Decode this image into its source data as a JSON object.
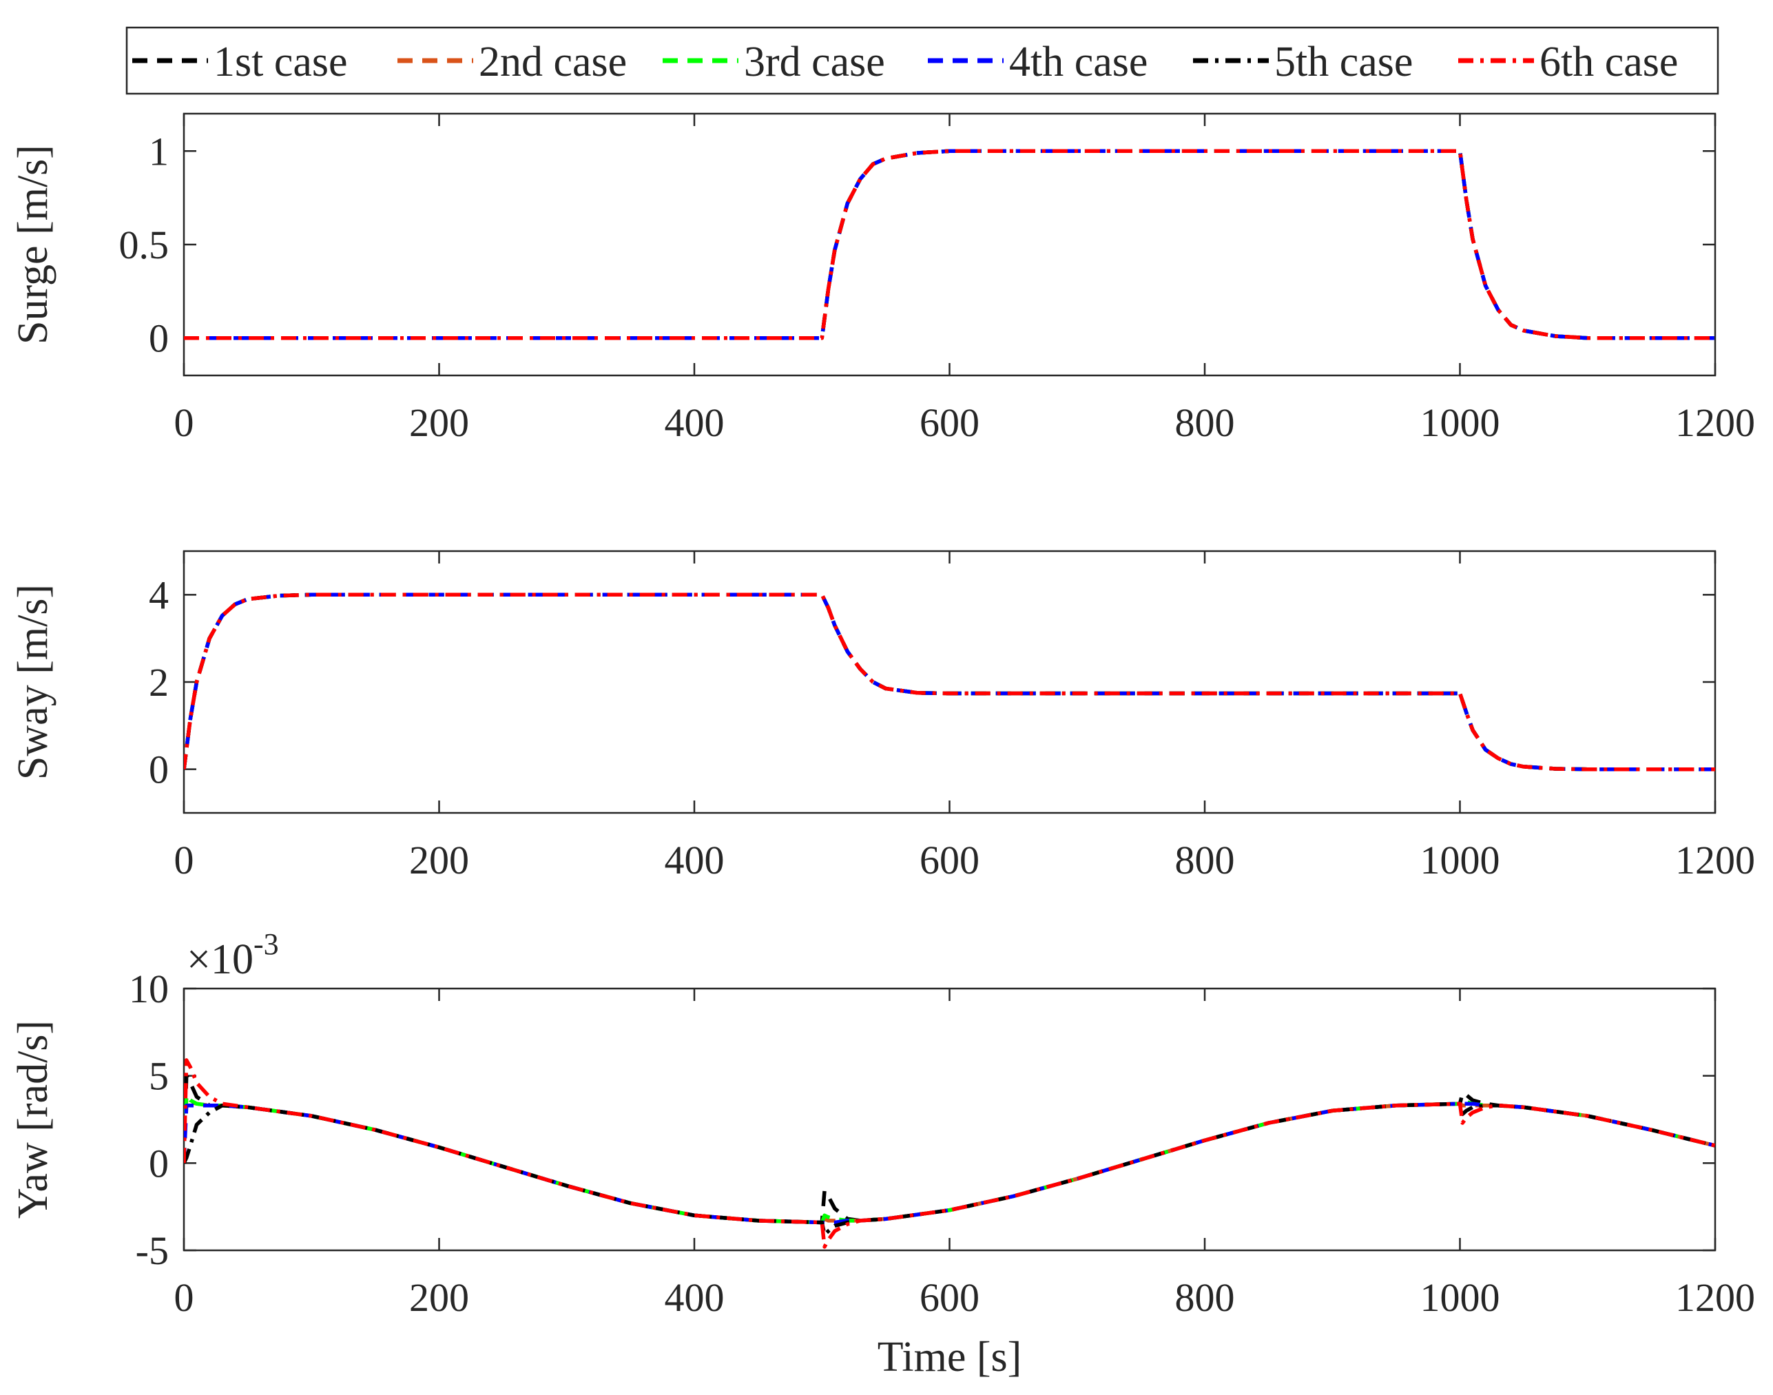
{
  "legend": {
    "entries": [
      {
        "label": "1st case",
        "color": "#000000",
        "dash": "dash"
      },
      {
        "label": "2nd case",
        "color": "#D95319",
        "dash": "dash"
      },
      {
        "label": "3rd case",
        "color": "#00FF00",
        "dash": "dash"
      },
      {
        "label": "4th case",
        "color": "#0000FF",
        "dash": "dash"
      },
      {
        "label": "5th case",
        "color": "#000000",
        "dash": "dashdot"
      },
      {
        "label": "6th case",
        "color": "#FF0000",
        "dash": "dashdot"
      }
    ]
  },
  "chart_data": [
    {
      "type": "line",
      "ylabel": "Surge [m/s]",
      "xlabel": "",
      "xlim": [
        0,
        1200
      ],
      "ylim": [
        -0.2,
        1.2
      ],
      "xticks": [
        "0",
        "200",
        "400",
        "600",
        "800",
        "1000",
        "1200"
      ],
      "yticks": [
        "0",
        "0.5",
        "1"
      ],
      "ytick_values": [
        0,
        0.5,
        1
      ],
      "exponent": "",
      "grid": false,
      "x": [
        0,
        100,
        200,
        300,
        400,
        500,
        505,
        510,
        520,
        530,
        540,
        550,
        575,
        600,
        700,
        800,
        900,
        1000,
        1005,
        1010,
        1020,
        1030,
        1040,
        1050,
        1075,
        1100,
        1200
      ],
      "series": [
        {
          "name": "1st case",
          "values": [
            0,
            0,
            0,
            0,
            0,
            0,
            0.26,
            0.47,
            0.72,
            0.85,
            0.93,
            0.96,
            0.99,
            1.0,
            1.0,
            1.0,
            1.0,
            1.0,
            0.74,
            0.53,
            0.28,
            0.15,
            0.07,
            0.04,
            0.01,
            0,
            0
          ]
        },
        {
          "name": "2nd case",
          "values": [
            0,
            0,
            0,
            0,
            0,
            0,
            0.26,
            0.47,
            0.72,
            0.85,
            0.93,
            0.96,
            0.99,
            1.0,
            1.0,
            1.0,
            1.0,
            1.0,
            0.74,
            0.53,
            0.28,
            0.15,
            0.07,
            0.04,
            0.01,
            0,
            0
          ]
        },
        {
          "name": "3rd case",
          "values": [
            0,
            0,
            0,
            0,
            0,
            0,
            0.26,
            0.47,
            0.72,
            0.85,
            0.93,
            0.96,
            0.99,
            1.0,
            1.0,
            1.0,
            1.0,
            1.0,
            0.74,
            0.53,
            0.28,
            0.15,
            0.07,
            0.04,
            0.01,
            0,
            0
          ]
        },
        {
          "name": "4th case",
          "values": [
            0,
            0,
            0,
            0,
            0,
            0,
            0.26,
            0.47,
            0.72,
            0.85,
            0.93,
            0.96,
            0.99,
            1.0,
            1.0,
            1.0,
            1.0,
            1.0,
            0.74,
            0.53,
            0.28,
            0.15,
            0.07,
            0.04,
            0.01,
            0,
            0
          ]
        },
        {
          "name": "5th case",
          "values": [
            0,
            0,
            0,
            0,
            0,
            0,
            0.26,
            0.47,
            0.72,
            0.85,
            0.93,
            0.96,
            0.99,
            1.0,
            1.0,
            1.0,
            1.0,
            1.0,
            0.74,
            0.53,
            0.28,
            0.15,
            0.07,
            0.04,
            0.01,
            0,
            0
          ]
        },
        {
          "name": "6th case",
          "values": [
            0,
            0,
            0,
            0,
            0,
            0,
            0.26,
            0.47,
            0.72,
            0.85,
            0.93,
            0.96,
            0.99,
            1.0,
            1.0,
            1.0,
            1.0,
            1.0,
            0.74,
            0.53,
            0.28,
            0.15,
            0.07,
            0.04,
            0.01,
            0,
            0
          ]
        }
      ]
    },
    {
      "type": "line",
      "ylabel": "Sway [m/s]",
      "xlabel": "",
      "xlim": [
        0,
        1200
      ],
      "ylim": [
        -1,
        5
      ],
      "xticks": [
        "0",
        "200",
        "400",
        "600",
        "800",
        "1000",
        "1200"
      ],
      "yticks": [
        "0",
        "2",
        "4"
      ],
      "ytick_values": [
        0,
        2,
        4
      ],
      "exponent": "",
      "grid": false,
      "x": [
        0,
        5,
        10,
        20,
        30,
        40,
        50,
        75,
        100,
        300,
        500,
        505,
        510,
        520,
        530,
        540,
        550,
        575,
        600,
        800,
        1000,
        1005,
        1010,
        1020,
        1030,
        1040,
        1050,
        1075,
        1100,
        1200
      ],
      "series": [
        {
          "name": "1st case",
          "values": [
            0,
            1.15,
            2.0,
            3.0,
            3.52,
            3.78,
            3.9,
            3.98,
            4.0,
            4.0,
            4.0,
            3.7,
            3.3,
            2.7,
            2.3,
            2.0,
            1.85,
            1.75,
            1.74,
            1.74,
            1.74,
            1.3,
            0.9,
            0.45,
            0.25,
            0.12,
            0.06,
            0.01,
            0,
            0
          ]
        },
        {
          "name": "2nd case",
          "values": [
            0,
            1.15,
            2.0,
            3.0,
            3.52,
            3.78,
            3.9,
            3.98,
            4.0,
            4.0,
            4.0,
            3.7,
            3.3,
            2.7,
            2.3,
            2.0,
            1.85,
            1.75,
            1.74,
            1.74,
            1.74,
            1.3,
            0.9,
            0.45,
            0.25,
            0.12,
            0.06,
            0.01,
            0,
            0
          ]
        },
        {
          "name": "3rd case",
          "values": [
            0,
            1.15,
            2.0,
            3.0,
            3.52,
            3.78,
            3.9,
            3.98,
            4.0,
            4.0,
            4.0,
            3.7,
            3.3,
            2.7,
            2.3,
            2.0,
            1.85,
            1.75,
            1.74,
            1.74,
            1.74,
            1.3,
            0.9,
            0.45,
            0.25,
            0.12,
            0.06,
            0.01,
            0,
            0
          ]
        },
        {
          "name": "4th case",
          "values": [
            0,
            1.15,
            2.0,
            3.0,
            3.52,
            3.78,
            3.9,
            3.98,
            4.0,
            4.0,
            4.0,
            3.7,
            3.3,
            2.7,
            2.3,
            2.0,
            1.85,
            1.75,
            1.74,
            1.74,
            1.74,
            1.3,
            0.9,
            0.45,
            0.25,
            0.12,
            0.06,
            0.01,
            0,
            0
          ]
        },
        {
          "name": "5th case",
          "values": [
            0,
            1.15,
            2.0,
            3.0,
            3.52,
            3.78,
            3.9,
            3.98,
            4.0,
            4.0,
            4.0,
            3.7,
            3.3,
            2.7,
            2.3,
            2.0,
            1.85,
            1.75,
            1.74,
            1.74,
            1.74,
            1.3,
            0.9,
            0.45,
            0.25,
            0.12,
            0.06,
            0.01,
            0,
            0
          ]
        },
        {
          "name": "6th case",
          "values": [
            0,
            1.15,
            2.0,
            3.0,
            3.52,
            3.78,
            3.9,
            3.98,
            4.0,
            4.0,
            4.0,
            3.7,
            3.3,
            2.7,
            2.3,
            2.0,
            1.85,
            1.75,
            1.74,
            1.74,
            1.74,
            1.3,
            0.9,
            0.45,
            0.25,
            0.12,
            0.06,
            0.01,
            0,
            0
          ]
        }
      ]
    },
    {
      "type": "line",
      "ylabel": "Yaw [rad/s]",
      "xlabel": "Time [s]",
      "xlim": [
        0,
        1200
      ],
      "ylim": [
        -5,
        10
      ],
      "xticks": [
        "0",
        "200",
        "400",
        "600",
        "800",
        "1000",
        "1200"
      ],
      "yticks": [
        "-5",
        "0",
        "5",
        "10"
      ],
      "ytick_values": [
        -5,
        0,
        5,
        10
      ],
      "exponent": "×10-3",
      "grid": false,
      "x": [
        0,
        2,
        5,
        10,
        20,
        30,
        50,
        100,
        150,
        200,
        250,
        300,
        350,
        400,
        450,
        500,
        502,
        505,
        510,
        520,
        530,
        550,
        600,
        650,
        700,
        750,
        800,
        850,
        900,
        950,
        1000,
        1002,
        1005,
        1010,
        1020,
        1030,
        1050,
        1100,
        1150,
        1200
      ],
      "series": [
        {
          "name": "1st case",
          "values": [
            0,
            5.0,
            4.6,
            3.8,
            3.3,
            3.3,
            3.2,
            2.7,
            1.9,
            0.9,
            -0.2,
            -1.3,
            -2.3,
            -3.0,
            -3.3,
            -3.4,
            -1.6,
            -1.9,
            -2.6,
            -3.2,
            -3.3,
            -3.2,
            -2.7,
            -1.9,
            -0.9,
            0.2,
            1.3,
            2.3,
            3.0,
            3.3,
            3.4,
            4.0,
            3.9,
            3.6,
            3.4,
            3.3,
            3.2,
            2.7,
            1.9,
            1.0
          ]
        },
        {
          "name": "2nd case",
          "values": [
            0,
            3.8,
            3.5,
            3.4,
            3.3,
            3.3,
            3.2,
            2.7,
            1.9,
            0.9,
            -0.2,
            -1.3,
            -2.3,
            -3.0,
            -3.3,
            -3.4,
            -3.2,
            -3.3,
            -3.3,
            -3.3,
            -3.3,
            -3.2,
            -2.7,
            -1.9,
            -0.9,
            0.2,
            1.3,
            2.3,
            3.0,
            3.3,
            3.4,
            3.3,
            3.3,
            3.3,
            3.3,
            3.3,
            3.2,
            2.7,
            1.9,
            1.0
          ]
        },
        {
          "name": "3rd case",
          "values": [
            0,
            3.9,
            3.6,
            3.4,
            3.3,
            3.3,
            3.2,
            2.7,
            1.9,
            0.9,
            -0.2,
            -1.3,
            -2.3,
            -3.0,
            -3.3,
            -3.4,
            -3.0,
            -3.1,
            -3.2,
            -3.3,
            -3.3,
            -3.2,
            -2.7,
            -1.9,
            -0.9,
            0.2,
            1.3,
            2.3,
            3.0,
            3.3,
            3.4,
            3.6,
            3.5,
            3.4,
            3.3,
            3.3,
            3.2,
            2.7,
            1.9,
            1.0
          ]
        },
        {
          "name": "4th case",
          "values": [
            0,
            3.3,
            3.3,
            3.3,
            3.3,
            3.3,
            3.2,
            2.7,
            1.9,
            0.9,
            -0.2,
            -1.3,
            -2.3,
            -3.0,
            -3.3,
            -3.4,
            -3.4,
            -3.4,
            -3.4,
            -3.3,
            -3.3,
            -3.2,
            -2.7,
            -1.9,
            -0.9,
            0.2,
            1.3,
            2.3,
            3.0,
            3.3,
            3.4,
            3.4,
            3.4,
            3.4,
            3.3,
            3.3,
            3.2,
            2.7,
            1.9,
            1.0
          ]
        },
        {
          "name": "5th case",
          "values": [
            0,
            0.3,
            1.0,
            2.2,
            2.9,
            3.3,
            3.2,
            2.7,
            1.9,
            0.9,
            -0.2,
            -1.3,
            -2.3,
            -3.0,
            -3.3,
            -3.4,
            -4.1,
            -3.9,
            -3.6,
            -3.4,
            -3.3,
            -3.2,
            -2.7,
            -1.9,
            -0.9,
            0.2,
            1.3,
            2.3,
            3.0,
            3.3,
            3.4,
            2.8,
            3.0,
            3.2,
            3.3,
            3.3,
            3.2,
            2.7,
            1.9,
            1.0
          ]
        },
        {
          "name": "6th case",
          "values": [
            0,
            5.9,
            5.5,
            4.6,
            3.8,
            3.4,
            3.2,
            2.7,
            1.9,
            0.9,
            -0.2,
            -1.3,
            -2.3,
            -3.0,
            -3.3,
            -3.4,
            -4.8,
            -4.4,
            -3.9,
            -3.5,
            -3.3,
            -3.2,
            -2.7,
            -1.9,
            -0.9,
            0.2,
            1.3,
            2.3,
            3.0,
            3.3,
            3.4,
            2.3,
            2.6,
            2.9,
            3.2,
            3.3,
            3.2,
            2.7,
            1.9,
            1.0
          ]
        }
      ]
    }
  ]
}
